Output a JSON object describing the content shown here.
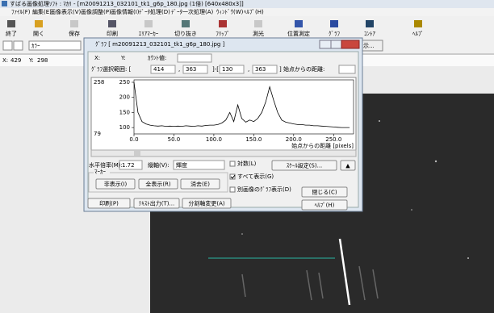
{
  "window": {
    "title": "すばる画像処理ｿﾌﾄ : ﾏｶﾘ - [m20091213_032101_tk1_g6p_180.jpg (1倍) [640x480x3]]",
    "menu": [
      "ﾌｧｲﾙ(F)",
      "編集(E)",
      "画像表示(V)",
      "画像調整(P)",
      "画像情報(I)",
      "ﾃﾞｰﾀ処理(D)",
      "ﾃﾞｰﾀ一次処理(A)",
      "ｳｨﾝﾄﾞｳ(W)",
      "ﾍﾙﾌﾟ(H)"
    ],
    "toolbar": [
      {
        "label": "終了",
        "enabled": true
      },
      {
        "label": "開く",
        "enabled": true
      },
      {
        "label": "保存",
        "enabled": false
      },
      {
        "label": "印刷",
        "enabled": true
      },
      {
        "label": "ｴﾘｱﾏｰｶｰ",
        "enabled": false
      },
      {
        "label": "切り抜き",
        "enabled": true
      },
      {
        "label": "ﾌﾘｯﾌﾟ",
        "enabled": true
      },
      {
        "label": "測光",
        "enabled": false
      },
      {
        "label": "位置測定",
        "enabled": true
      },
      {
        "label": "ｸﾞﾗﾌ",
        "enabled": true
      },
      {
        "label": "ｺﾝﾄｱ",
        "enabled": true
      },
      {
        "label": "ﾍﾙﾌﾟ",
        "enabled": true
      }
    ],
    "color_select": "ｶﾗｰ",
    "display_button": "示...",
    "x_label": "X:",
    "x_value": 429,
    "y_label": "Y:",
    "y_value": 298
  },
  "dialog": {
    "title": "ｸﾞﾗﾌ [ m20091213_032101_tk1_g6p_180.jpg ]",
    "x_label": "X:",
    "y_label": "Y:",
    "count_label": "ｶｳﾝﾄ値:",
    "range_label": "ｸﾞﾗﾌ選択範囲: [",
    "range": [
      414,
      363,
      130,
      363
    ],
    "range_separators": [
      ",",
      "]-[",
      ","
    ],
    "distance_label": "] 始点からの距離:",
    "h_scale_label": "水平倍率(M):",
    "h_scale": 1.72,
    "v_axis_label": "縦軸(V):",
    "v_axis": "輝度",
    "marker": "ﾏｰｶｰ",
    "checkboxes": [
      {
        "label": "対数(L)",
        "checked": false
      },
      {
        "label": "すべて表示(G)",
        "checked": true
      },
      {
        "label": "別画像のｸﾞﾗﾌ表示(D)",
        "checked": false
      }
    ],
    "buttons": [
      {
        "label": "非表示(I)",
        "enabled": true
      },
      {
        "label": "全表示(R)",
        "enabled": false
      },
      {
        "label": "消去(E)",
        "enabled": true
      },
      {
        "label": "印刷(P)",
        "enabled": true
      },
      {
        "label": "ﾃｷｽﾄ出力(T)...",
        "enabled": true
      },
      {
        "label": "分割軸変更(A)",
        "enabled": false
      },
      {
        "label": "ｽｹｰﾙ設定(S)...",
        "enabled": true
      },
      {
        "label": "▲",
        "enabled": true
      },
      {
        "label": "閉じる(C)",
        "enabled": true
      },
      {
        "label": "ﾍﾙﾌﾟ(H)",
        "enabled": true
      }
    ]
  },
  "chart_data": {
    "type": "line",
    "x_label": "始点からの距離 [pixels]",
    "color": "#000000",
    "x": [
      0,
      5,
      10,
      15,
      20,
      25,
      30,
      35,
      40,
      45,
      50,
      55,
      60,
      65,
      70,
      75,
      80,
      85,
      90,
      95,
      100,
      105,
      110,
      115,
      120,
      125,
      130,
      135,
      140,
      145,
      150,
      155,
      160,
      165,
      170,
      175,
      180,
      185,
      190,
      195,
      200,
      205,
      210,
      215,
      220,
      225,
      230,
      235,
      240,
      245,
      250,
      255,
      260,
      265,
      270
    ],
    "values": [
      250,
      150,
      120,
      112,
      108,
      106,
      105,
      106,
      104,
      105,
      104,
      105,
      104,
      106,
      105,
      104,
      106,
      105,
      107,
      108,
      108,
      110,
      115,
      125,
      150,
      120,
      175,
      130,
      118,
      125,
      120,
      130,
      150,
      185,
      235,
      190,
      150,
      125,
      118,
      115,
      112,
      110,
      110,
      108,
      108,
      106,
      106,
      105,
      104,
      103,
      102,
      101,
      100,
      100,
      100
    ],
    "xlim": [
      0,
      275
    ],
    "ylim": [
      79,
      258
    ],
    "xticks": [
      {
        "value": 0,
        "label": "0.0"
      },
      {
        "value": 50,
        "label": "50.0"
      },
      {
        "value": 100,
        "label": "100.0"
      },
      {
        "value": 150,
        "label": "150.0"
      },
      {
        "value": 200,
        "label": "200.0"
      },
      {
        "value": 250,
        "label": "250.0"
      }
    ],
    "yticks": [
      100,
      150,
      200,
      250
    ]
  }
}
